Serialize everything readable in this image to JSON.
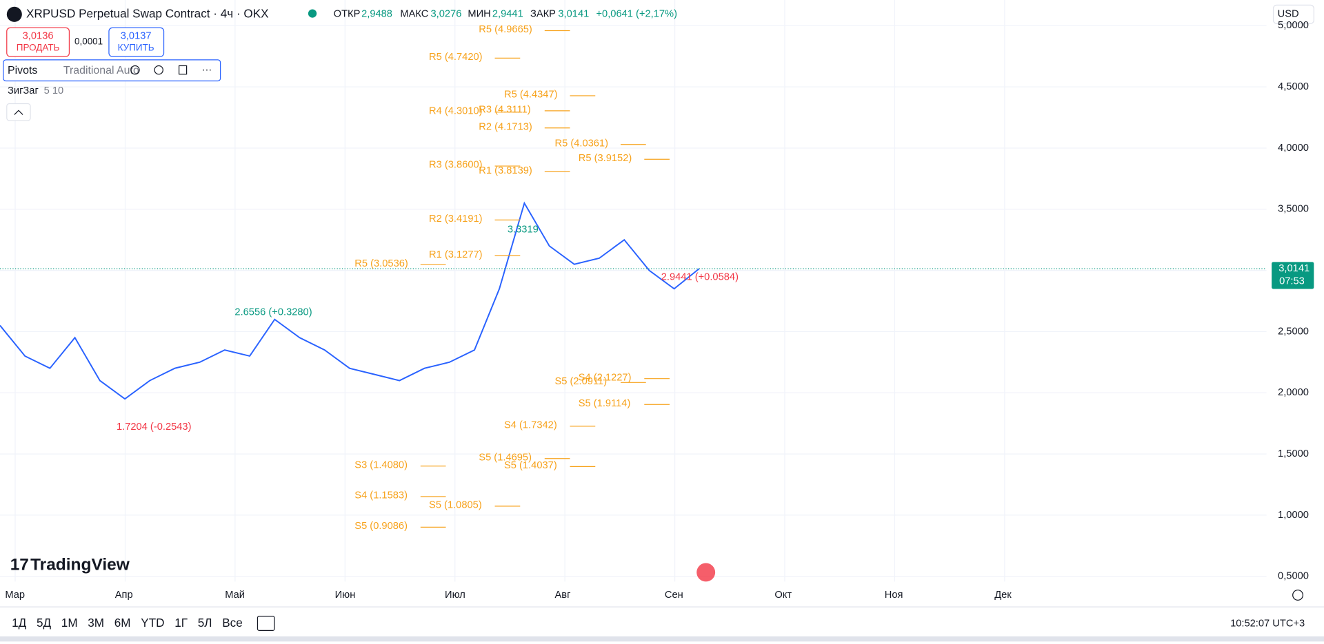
{
  "header": {
    "symbol": "XRPUSD Perpetual Swap Contract · 4ч · OKX",
    "open_label": "ОТКР",
    "open": "2,9488",
    "high_label": "МАКС",
    "high": "3,0276",
    "low_label": "МИН",
    "low": "2,9441",
    "close_label": "ЗАКР",
    "close": "3,0141",
    "change": "+0,0641 (+2,17%)"
  },
  "trade": {
    "sell": "3,0136",
    "sell_label": "ПРОДАТЬ",
    "spread": "0,0001",
    "buy": "3,0137",
    "buy_label": "КУПИТЬ"
  },
  "indicators": {
    "pivots_name": "Pivots",
    "pivots_args": "Traditional Auto",
    "zigzag_name": "ЗигЗаг",
    "zigzag_args": "5 10"
  },
  "currency": "USD",
  "price_tag": {
    "price": "3,0141",
    "countdown": "07:53"
  },
  "logo": "TradingView",
  "timeframes": [
    "1Д",
    "5Д",
    "1М",
    "3М",
    "6М",
    "YTD",
    "1Г",
    "5Л",
    "Все"
  ],
  "clock": "10:52:07 UTC+3",
  "chart_data": {
    "type": "line",
    "color": "#2962ff",
    "months": [
      "Мар",
      "Апр",
      "Май",
      "Июн",
      "Июл",
      "Авг",
      "Сен",
      "Окт",
      "Ноя",
      "Дек"
    ],
    "values": [
      2.55,
      2.3,
      2.2,
      2.45,
      2.1,
      1.95,
      2.1,
      2.2,
      2.25,
      2.35,
      2.3,
      2.6,
      2.45,
      2.35,
      2.2,
      2.15,
      2.1,
      2.2,
      2.25,
      2.35,
      2.85,
      3.55,
      3.2,
      3.05,
      3.1,
      3.25,
      3.0,
      2.85,
      3.0141
    ],
    "last": 3.0141,
    "ylim": [
      0.25,
      5.21
    ],
    "yticks": [
      {
        "value": 0.5,
        "label": "0,5000"
      },
      {
        "value": 1.0,
        "label": "1,0000"
      },
      {
        "value": 1.5,
        "label": "1,5000"
      },
      {
        "value": 2.0,
        "label": "2,0000"
      },
      {
        "value": 2.5,
        "label": "2,5000"
      },
      {
        "value": 3.0,
        "label": "3,0000"
      },
      {
        "value": 3.5,
        "label": "3,5000"
      },
      {
        "value": 4.0,
        "label": "4,0000"
      },
      {
        "value": 4.5,
        "label": "4,5000"
      },
      {
        "value": 5.0,
        "label": "5,0000"
      }
    ],
    "grid": true
  },
  "pivots": [
    [
      {
        "level": 3.0536,
        "label": "R5 (3.0536)"
      },
      {
        "level": 1.408,
        "label": "S3 (1.4080)"
      },
      {
        "level": 1.1583,
        "label": "S4 (1.1583)"
      },
      {
        "level": 0.9086,
        "label": "S5 (0.9086)"
      }
    ],
    [
      {
        "level": 4.742,
        "label": "R5 (4.7420)"
      },
      {
        "level": 4.301,
        "label": "R4 (4.3010)"
      },
      {
        "level": 3.86,
        "label": "R3 (3.8600)"
      },
      {
        "level": 3.4191,
        "label": "R2 (3.4191)"
      },
      {
        "level": 3.1277,
        "label": "R1 (3.1277)"
      },
      {
        "level": 1.0805,
        "label": "S5 (1.0805)"
      }
    ],
    [
      {
        "level": 4.9665,
        "label": "R5 (4.9665)"
      },
      {
        "level": 4.3111,
        "label": "R3 (4.3111)"
      },
      {
        "level": 4.1713,
        "label": "R2 (4.1713)"
      },
      {
        "level": 3.8139,
        "label": "R1 (3.8139)"
      },
      {
        "level": 1.4695,
        "label": "S5 (1.4695)"
      }
    ],
    [
      {
        "level": 4.4347,
        "label": "R5 (4.4347)"
      },
      {
        "level": 1.7342,
        "label": "S4 (1.7342)"
      },
      {
        "level": 1.4037,
        "label": "S5 (1.4037)"
      }
    ],
    [
      {
        "level": 4.0361,
        "label": "R5 (4.0361)"
      },
      {
        "level": 2.0911,
        "label": "S5 (2.0911)"
      }
    ],
    [
      {
        "level": 3.9152,
        "label": "R5 (3.9152)"
      },
      {
        "level": 2.1227,
        "label": "S4 (2.1227)"
      },
      {
        "level": 1.9114,
        "label": "S5 (1.9114)"
      }
    ]
  ],
  "zigzag": [
    {
      "level": 2.6556,
      "label": "2.6556 (+0.3280)",
      "color": "#089981"
    },
    {
      "level": 1.7204,
      "label": "1.7204 (-0.2543)",
      "color": "#f23645"
    },
    {
      "level": 2.9441,
      "label": "2.9441 (+0.0584)",
      "color": "#f23645"
    },
    {
      "level": 3.3319,
      "label": "3.3319",
      "color": "#089981"
    }
  ]
}
